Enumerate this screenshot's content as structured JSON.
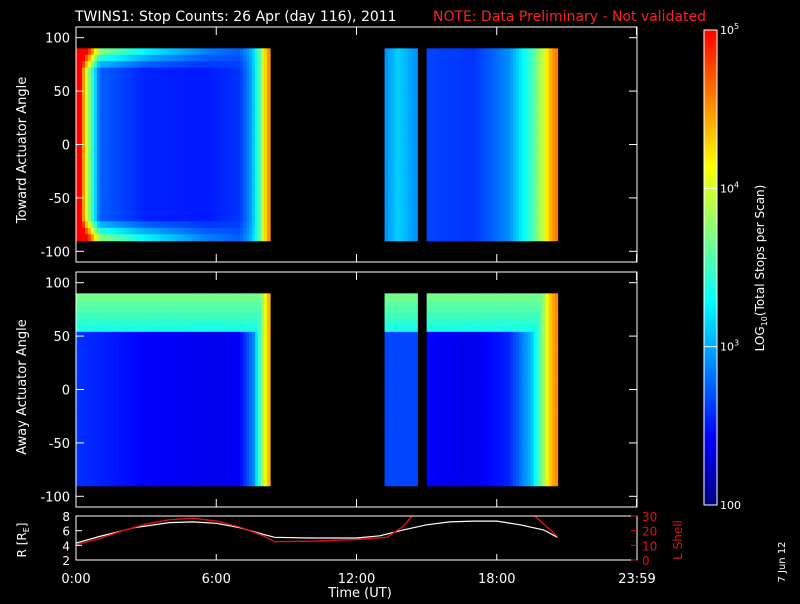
{
  "header": {
    "title": "TWINS1: Stop Counts: 26 Apr (day 116), 2011",
    "note": "NOTE: Data Preliminary - Not validated"
  },
  "footer": {
    "date_stamp": "7 Jun 12"
  },
  "colors": {
    "background": "#000000",
    "axis": "#ffffff",
    "note": "#ff2020",
    "lshell_line": "#e01010",
    "radius_line": "#ffffff",
    "colorscale": [
      "#00007f",
      "#0000ff",
      "#007fff",
      "#00ffff",
      "#7fff7f",
      "#ffff00",
      "#ff7f00",
      "#ff0000"
    ]
  },
  "chart_data": [
    {
      "type": "heatmap",
      "name": "toward",
      "ylabel": "Toward Actuator Angle",
      "xlim_hours": [
        0,
        24
      ],
      "ylim": [
        -110,
        110
      ],
      "yticks": [
        100,
        50,
        0,
        -50,
        -100
      ],
      "data_yrange": [
        -90,
        90
      ],
      "segments_hours": [
        [
          0,
          8.3
        ],
        [
          13.2,
          14.6
        ],
        [
          15.0,
          20.6
        ]
      ],
      "scale": "log",
      "profile": [
        {
          "t": 0.0,
          "v": 1.7
        },
        {
          "t": 0.35,
          "v": 0.75
        },
        {
          "t": 1.0,
          "v": 0.25
        },
        {
          "t": 3.0,
          "v": 0.18
        },
        {
          "t": 5.5,
          "v": 0.17
        },
        {
          "t": 7.0,
          "v": 0.2
        },
        {
          "t": 7.5,
          "v": 0.32
        },
        {
          "t": 7.8,
          "v": 0.48
        },
        {
          "t": 8.0,
          "v": 0.66
        },
        {
          "t": 8.15,
          "v": 0.8
        },
        {
          "t": 8.3,
          "v": 0.86
        },
        {
          "t": 13.2,
          "v": 0.3
        },
        {
          "t": 13.8,
          "v": 0.38
        },
        {
          "t": 14.6,
          "v": 0.3
        },
        {
          "t": 15.0,
          "v": 0.22
        },
        {
          "t": 17.0,
          "v": 0.2
        },
        {
          "t": 18.5,
          "v": 0.3
        },
        {
          "t": 19.5,
          "v": 0.5
        },
        {
          "t": 20.0,
          "v": 0.66
        },
        {
          "t": 20.3,
          "v": 0.8
        },
        {
          "t": 20.6,
          "v": 0.88
        }
      ],
      "angular_enhancement": "edge",
      "xlabel": ""
    },
    {
      "type": "heatmap",
      "name": "away",
      "ylabel": "Away Actuator Angle",
      "xlim_hours": [
        0,
        24
      ],
      "ylim": [
        -110,
        110
      ],
      "yticks": [
        100,
        50,
        0,
        -50,
        -100
      ],
      "data_yrange": [
        -90,
        90
      ],
      "segments_hours": [
        [
          0,
          8.3
        ],
        [
          13.2,
          14.6
        ],
        [
          15.0,
          20.6
        ]
      ],
      "scale": "log",
      "profile": [
        {
          "t": 0.0,
          "v": 0.2
        },
        {
          "t": 3.0,
          "v": 0.14
        },
        {
          "t": 6.0,
          "v": 0.12
        },
        {
          "t": 7.0,
          "v": 0.14
        },
        {
          "t": 7.6,
          "v": 0.3
        },
        {
          "t": 8.0,
          "v": 0.62
        },
        {
          "t": 8.3,
          "v": 0.84
        },
        {
          "t": 13.2,
          "v": 0.22
        },
        {
          "t": 14.6,
          "v": 0.22
        },
        {
          "t": 15.0,
          "v": 0.14
        },
        {
          "t": 17.0,
          "v": 0.12
        },
        {
          "t": 18.5,
          "v": 0.18
        },
        {
          "t": 19.5,
          "v": 0.36
        },
        {
          "t": 20.0,
          "v": 0.6
        },
        {
          "t": 20.3,
          "v": 0.78
        },
        {
          "t": 20.6,
          "v": 0.86
        }
      ],
      "angular_enhancement": "top",
      "xlabel": ""
    },
    {
      "type": "line",
      "name": "orbit",
      "xlabel": "Time (UT)",
      "xticks": [
        "0:00",
        "6:00",
        "12:00",
        "18:00",
        "23:59"
      ],
      "xlim_hours": [
        0,
        24
      ],
      "left_axis": {
        "label": "R [R",
        "label_subscript": "E",
        "label_suffix": "]",
        "ylim": [
          2,
          8
        ],
        "ticks": [
          2,
          4,
          6,
          8
        ]
      },
      "right_axis": {
        "label": "L Shell",
        "ylim": [
          0,
          30
        ],
        "ticks": [
          0,
          10,
          20,
          30
        ]
      },
      "series": [
        {
          "axis": "left",
          "points": [
            [
              0,
              4.3
            ],
            [
              1.0,
              5.2
            ],
            [
              2.5,
              6.4
            ],
            [
              4.0,
              7.1
            ],
            [
              5.0,
              7.2
            ],
            [
              6.0,
              7.0
            ],
            [
              7.0,
              6.4
            ],
            [
              8.0,
              5.5
            ],
            [
              8.5,
              5.1
            ],
            [
              10.0,
              5.0
            ],
            [
              12.0,
              5.0
            ],
            [
              13.0,
              5.3
            ],
            [
              14.0,
              6.1
            ],
            [
              15.0,
              6.8
            ],
            [
              16.0,
              7.2
            ],
            [
              17.0,
              7.3
            ],
            [
              18.0,
              7.3
            ],
            [
              19.0,
              6.8
            ],
            [
              20.0,
              6.1
            ],
            [
              20.6,
              5.1
            ]
          ]
        },
        {
          "axis": "right",
          "points": [
            [
              0,
              10.5
            ],
            [
              1.0,
              14.5
            ],
            [
              2.0,
              20.0
            ],
            [
              3.0,
              24.5
            ],
            [
              4.0,
              27.5
            ],
            [
              5.0,
              28.5
            ],
            [
              6.0,
              26.5
            ],
            [
              7.0,
              22.5
            ],
            [
              8.0,
              16.5
            ],
            [
              8.5,
              12.5
            ],
            [
              10.0,
              12.8
            ],
            [
              12.0,
              14.0
            ],
            [
              13.3,
              15.5
            ],
            [
              14.0,
              23.0
            ],
            [
              14.8,
              38.0
            ]
          ],
          "extra": [
            [
              19.2,
              38.0
            ],
            [
              19.7,
              29.0
            ],
            [
              20.6,
              16.0
            ]
          ]
        }
      ]
    },
    {
      "type": "colorbar",
      "name": "log_counts",
      "label": "LOG",
      "label_subscript": "10",
      "label_suffix": "(Total Stops per Scan)",
      "range": [
        100,
        100000
      ],
      "scale": "log",
      "ticks": [
        {
          "value": 100000,
          "text_base": "10",
          "text_exp": "5",
          "level": 1.0
        },
        {
          "value": 10000,
          "text_base": "10",
          "text_exp": "4",
          "level": 0.6667
        },
        {
          "value": 1000,
          "text_base": "10",
          "text_exp": "3",
          "level": 0.3333
        },
        {
          "value": 100,
          "text_base": "100",
          "text_exp": "",
          "level": 0.0
        }
      ]
    }
  ]
}
